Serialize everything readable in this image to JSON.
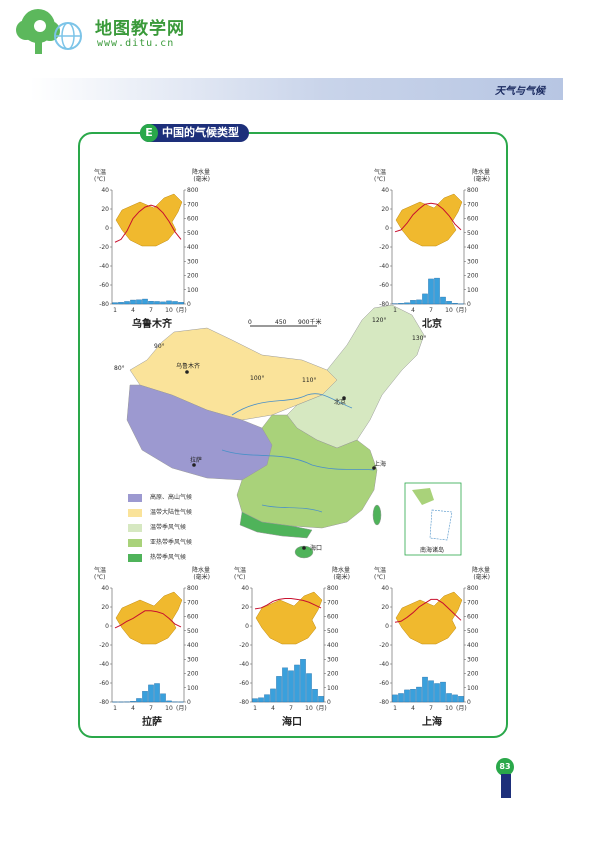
{
  "header": {
    "site_name": "地图教学网",
    "site_url": "www.ditu.cn",
    "chapter_title": "天气与气候"
  },
  "section": {
    "letter": "E",
    "title": "中国的气候类型"
  },
  "map": {
    "scale_labels": [
      "0",
      "450",
      "900千米"
    ],
    "cities": [
      "乌鲁木齐",
      "北京",
      "拉萨",
      "上海",
      "海口"
    ],
    "inset_label": "南海诸岛",
    "longitude_labels": [
      "80°",
      "90°",
      "100°",
      "110°",
      "120°",
      "130°"
    ],
    "legend": [
      {
        "label": "高原、高山气候",
        "color": "#9c99d0"
      },
      {
        "label": "温带大陆性气候",
        "color": "#fae39a"
      },
      {
        "label": "温带季风气候",
        "color": "#d6e8c1"
      },
      {
        "label": "亚热带季风气候",
        "color": "#a9d27a"
      },
      {
        "label": "热带季风气候",
        "color": "#4fb35a"
      }
    ]
  },
  "climographs": {
    "axis": {
      "temp_title": "气温",
      "temp_unit": "(℃)",
      "precip_title": "降水量",
      "precip_unit": "(毫米)",
      "temp_ticks": [
        "40",
        "20",
        "0",
        "-20",
        "-40",
        "-60",
        "-80"
      ],
      "precip_ticks": [
        "800",
        "700",
        "600",
        "500",
        "400",
        "300",
        "200",
        "100",
        "0"
      ],
      "month_ticks": [
        "1",
        "4",
        "7",
        "10"
      ],
      "month_unit": "(月)"
    },
    "items": [
      {
        "name": "乌鲁木齐",
        "temps": [
          -15,
          -12,
          -3,
          10,
          17,
          22,
          24,
          22,
          16,
          7,
          -4,
          -12
        ],
        "precip": [
          10,
          12,
          18,
          28,
          30,
          35,
          20,
          18,
          15,
          22,
          18,
          12
        ]
      },
      {
        "name": "北京",
        "temps": [
          -4,
          -2,
          5,
          14,
          20,
          25,
          26,
          25,
          20,
          13,
          4,
          -2
        ],
        "precip": [
          3,
          5,
          9,
          26,
          29,
          71,
          176,
          182,
          49,
          19,
          6,
          2
        ]
      },
      {
        "name": "拉萨",
        "temps": [
          -2,
          1,
          5,
          8,
          12,
          16,
          16,
          15,
          13,
          8,
          2,
          -1
        ],
        "precip": [
          1,
          1,
          2,
          5,
          25,
          75,
          120,
          130,
          58,
          8,
          2,
          1
        ]
      },
      {
        "name": "海口",
        "temps": [
          18,
          19,
          22,
          26,
          28,
          29,
          29,
          28,
          27,
          25,
          22,
          19
        ],
        "precip": [
          24,
          30,
          52,
          92,
          180,
          240,
          220,
          260,
          300,
          200,
          90,
          40
        ]
      },
      {
        "name": "上海",
        "temps": [
          4,
          5,
          9,
          14,
          20,
          24,
          28,
          28,
          24,
          18,
          12,
          6
        ],
        "precip": [
          50,
          60,
          85,
          90,
          105,
          175,
          150,
          130,
          140,
          60,
          50,
          40
        ]
      }
    ]
  },
  "chart_data": [
    {
      "type": "bar+line",
      "title": "乌鲁木齐",
      "x": [
        1,
        2,
        3,
        4,
        5,
        6,
        7,
        8,
        9,
        10,
        11,
        12
      ],
      "series": [
        {
          "name": "降水量",
          "values": [
            10,
            12,
            18,
            28,
            30,
            35,
            20,
            18,
            15,
            22,
            18,
            12
          ]
        },
        {
          "name": "气温",
          "values": [
            -15,
            -12,
            -3,
            10,
            17,
            22,
            24,
            22,
            16,
            7,
            -4,
            -12
          ]
        }
      ],
      "ylim_temp": [
        -80,
        40
      ],
      "ylim_precip": [
        0,
        800
      ]
    },
    {
      "type": "bar+line",
      "title": "北京",
      "x": [
        1,
        2,
        3,
        4,
        5,
        6,
        7,
        8,
        9,
        10,
        11,
        12
      ],
      "series": [
        {
          "name": "降水量",
          "values": [
            3,
            5,
            9,
            26,
            29,
            71,
            176,
            182,
            49,
            19,
            6,
            2
          ]
        },
        {
          "name": "气温",
          "values": [
            -4,
            -2,
            5,
            14,
            20,
            25,
            26,
            25,
            20,
            13,
            4,
            -2
          ]
        }
      ],
      "ylim_temp": [
        -80,
        40
      ],
      "ylim_precip": [
        0,
        800
      ]
    },
    {
      "type": "bar+line",
      "title": "拉萨",
      "x": [
        1,
        2,
        3,
        4,
        5,
        6,
        7,
        8,
        9,
        10,
        11,
        12
      ],
      "series": [
        {
          "name": "降水量",
          "values": [
            1,
            1,
            2,
            5,
            25,
            75,
            120,
            130,
            58,
            8,
            2,
            1
          ]
        },
        {
          "name": "气温",
          "values": [
            -2,
            1,
            5,
            8,
            12,
            16,
            16,
            15,
            13,
            8,
            2,
            -1
          ]
        }
      ],
      "ylim_temp": [
        -80,
        40
      ],
      "ylim_precip": [
        0,
        800
      ]
    },
    {
      "type": "bar+line",
      "title": "海口",
      "x": [
        1,
        2,
        3,
        4,
        5,
        6,
        7,
        8,
        9,
        10,
        11,
        12
      ],
      "series": [
        {
          "name": "降水量",
          "values": [
            24,
            30,
            52,
            92,
            180,
            240,
            220,
            260,
            300,
            200,
            90,
            40
          ]
        },
        {
          "name": "气温",
          "values": [
            18,
            19,
            22,
            26,
            28,
            29,
            29,
            28,
            27,
            25,
            22,
            19
          ]
        }
      ],
      "ylim_temp": [
        -80,
        40
      ],
      "ylim_precip": [
        0,
        800
      ]
    },
    {
      "type": "bar+line",
      "title": "上海",
      "x": [
        1,
        2,
        3,
        4,
        5,
        6,
        7,
        8,
        9,
        10,
        11,
        12
      ],
      "series": [
        {
          "name": "降水量",
          "values": [
            50,
            60,
            85,
            90,
            105,
            175,
            150,
            130,
            140,
            60,
            50,
            40
          ]
        },
        {
          "name": "气温",
          "values": [
            4,
            5,
            9,
            14,
            20,
            24,
            28,
            28,
            24,
            18,
            12,
            6
          ]
        }
      ],
      "ylim_temp": [
        -80,
        40
      ],
      "ylim_precip": [
        0,
        800
      ]
    }
  ],
  "page": {
    "number": "83"
  }
}
